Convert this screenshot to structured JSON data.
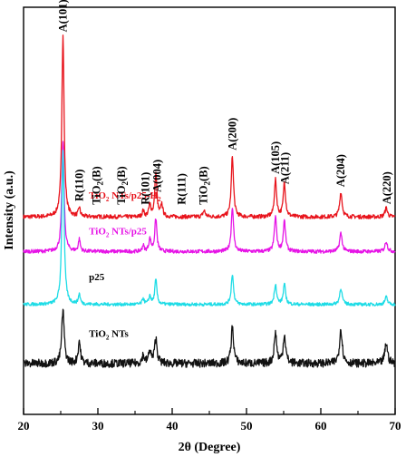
{
  "chart_data": {
    "type": "line",
    "xlabel": "2θ (Degree)",
    "ylabel": "Intensity (a.u.)",
    "xlim": [
      20,
      70
    ],
    "xticks": [
      20,
      30,
      40,
      50,
      60,
      70
    ],
    "xtick_labels": [
      "20",
      "30",
      "40",
      "50",
      "60",
      "70"
    ],
    "grid": false,
    "series": [
      {
        "name": "TiO2 NTs/p25-H2",
        "display": [
          "TiO",
          "2",
          " NTs/p25-H",
          "2"
        ],
        "color": "#e8141c",
        "baseline": 0.515,
        "noise": 0.01,
        "peaks": [
          {
            "x": 25.3,
            "h": 0.445,
            "w": 0.18
          },
          {
            "x": 27.5,
            "h": 0.022,
            "w": 0.15
          },
          {
            "x": 36.1,
            "h": 0.015,
            "w": 0.15
          },
          {
            "x": 37.0,
            "h": 0.028,
            "w": 0.18
          },
          {
            "x": 37.8,
            "h": 0.105,
            "w": 0.17
          },
          {
            "x": 38.6,
            "h": 0.03,
            "w": 0.16
          },
          {
            "x": 44.3,
            "h": 0.015,
            "w": 0.2
          },
          {
            "x": 48.1,
            "h": 0.15,
            "w": 0.18
          },
          {
            "x": 53.9,
            "h": 0.09,
            "w": 0.18
          },
          {
            "x": 55.1,
            "h": 0.085,
            "w": 0.18
          },
          {
            "x": 62.7,
            "h": 0.06,
            "w": 0.2
          },
          {
            "x": 68.8,
            "h": 0.022,
            "w": 0.2
          }
        ]
      },
      {
        "name": "TiO2 NTs/p25",
        "display": [
          "TiO",
          "2",
          " NTs/p25"
        ],
        "color": "#e614e6",
        "baseline": 0.6,
        "noise": 0.009,
        "peaks": [
          {
            "x": 25.3,
            "h": 0.27,
            "w": 0.18
          },
          {
            "x": 27.5,
            "h": 0.03,
            "w": 0.15
          },
          {
            "x": 36.1,
            "h": 0.015,
            "w": 0.15
          },
          {
            "x": 37.0,
            "h": 0.03,
            "w": 0.18
          },
          {
            "x": 37.8,
            "h": 0.08,
            "w": 0.17
          },
          {
            "x": 48.1,
            "h": 0.11,
            "w": 0.18
          },
          {
            "x": 53.9,
            "h": 0.085,
            "w": 0.18
          },
          {
            "x": 55.1,
            "h": 0.075,
            "w": 0.18
          },
          {
            "x": 62.7,
            "h": 0.045,
            "w": 0.2
          },
          {
            "x": 68.8,
            "h": 0.025,
            "w": 0.2
          }
        ]
      },
      {
        "name": "p25",
        "display": [
          "p25"
        ],
        "color": "#1edce6",
        "baseline": 0.73,
        "noise": 0.008,
        "peaks": [
          {
            "x": 25.3,
            "h": 0.38,
            "w": 0.18
          },
          {
            "x": 27.5,
            "h": 0.025,
            "w": 0.15
          },
          {
            "x": 36.1,
            "h": 0.015,
            "w": 0.15
          },
          {
            "x": 37.0,
            "h": 0.02,
            "w": 0.18
          },
          {
            "x": 37.8,
            "h": 0.06,
            "w": 0.17
          },
          {
            "x": 48.1,
            "h": 0.075,
            "w": 0.18
          },
          {
            "x": 53.9,
            "h": 0.05,
            "w": 0.18
          },
          {
            "x": 55.1,
            "h": 0.05,
            "w": 0.18
          },
          {
            "x": 62.7,
            "h": 0.04,
            "w": 0.2
          },
          {
            "x": 68.8,
            "h": 0.018,
            "w": 0.2
          }
        ]
      },
      {
        "name": "TiO2 NTs",
        "display": [
          "TiO",
          "2",
          " NTs"
        ],
        "color": "#111111",
        "baseline": 0.875,
        "noise": 0.02,
        "peaks": [
          {
            "x": 25.3,
            "h": 0.13,
            "w": 0.2
          },
          {
            "x": 27.5,
            "h": 0.055,
            "w": 0.18
          },
          {
            "x": 36.1,
            "h": 0.02,
            "w": 0.18
          },
          {
            "x": 37.0,
            "h": 0.03,
            "w": 0.2
          },
          {
            "x": 37.8,
            "h": 0.06,
            "w": 0.2
          },
          {
            "x": 48.1,
            "h": 0.09,
            "w": 0.2
          },
          {
            "x": 53.9,
            "h": 0.075,
            "w": 0.2
          },
          {
            "x": 55.1,
            "h": 0.07,
            "w": 0.2
          },
          {
            "x": 62.7,
            "h": 0.085,
            "w": 0.22
          },
          {
            "x": 68.8,
            "h": 0.05,
            "w": 0.22
          }
        ]
      }
    ],
    "annotations": [
      {
        "text": [
          "A(101)"
        ],
        "x": 25.3
      },
      {
        "text": [
          "R(110)"
        ],
        "x": 27.5
      },
      {
        "text": [
          "TiO",
          "2",
          "(B)"
        ],
        "x": 29.8
      },
      {
        "text": [
          "TiO",
          "2",
          "(B)"
        ],
        "x": 33.2
      },
      {
        "text": [
          "R(101)"
        ],
        "x": 36.4
      },
      {
        "text": [
          "A(004)"
        ],
        "x": 38.0
      },
      {
        "text": [
          "R(111)"
        ],
        "x": 41.3
      },
      {
        "text": [
          "TiO",
          "2",
          "(B)"
        ],
        "x": 44.2
      },
      {
        "text": [
          "A(200)"
        ],
        "x": 48.1
      },
      {
        "text": [
          "A(105)"
        ],
        "x": 53.9
      },
      {
        "text": [
          "A(211)"
        ],
        "x": 55.2
      },
      {
        "text": [
          "A(204)"
        ],
        "x": 62.7
      },
      {
        "text": [
          "A(220)"
        ],
        "x": 68.9
      }
    ]
  }
}
